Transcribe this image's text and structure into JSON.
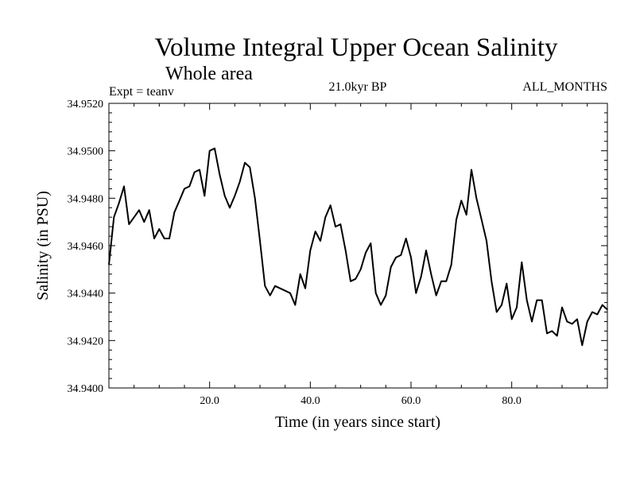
{
  "chart_data": {
    "type": "line",
    "title": "Volume Integral Upper Ocean Salinity",
    "subtitle": "Whole area",
    "experiment_label": "Expt = teanv",
    "period_label": "21.0kyr BP",
    "months_label": "ALL_MONTHS",
    "xlabel": "Time (in years since start)",
    "ylabel": "Salinity (in PSU)",
    "xlim": [
      0,
      99
    ],
    "ylim": [
      34.94,
      34.952
    ],
    "x_ticks": [
      20,
      40,
      60,
      80
    ],
    "x_tick_labels": [
      "20.0",
      "40.0",
      "60.0",
      "80.0"
    ],
    "y_ticks": [
      34.94,
      34.942,
      34.944,
      34.946,
      34.948,
      34.95,
      34.952
    ],
    "y_tick_labels": [
      "34.9400",
      "34.9420",
      "34.9440",
      "34.9460",
      "34.9480",
      "34.9500",
      "34.9520"
    ],
    "series": [
      {
        "name": "salinity",
        "x": [
          0,
          1,
          2,
          3,
          4,
          5,
          6,
          7,
          8,
          9,
          10,
          11,
          12,
          13,
          14,
          15,
          16,
          17,
          18,
          19,
          20,
          21,
          22,
          23,
          24,
          25,
          26,
          27,
          28,
          29,
          30,
          31,
          32,
          33,
          34,
          35,
          36,
          37,
          38,
          39,
          40,
          41,
          42,
          43,
          44,
          45,
          46,
          47,
          48,
          49,
          50,
          51,
          52,
          53,
          54,
          55,
          56,
          57,
          58,
          59,
          60,
          61,
          62,
          63,
          64,
          65,
          66,
          67,
          68,
          69,
          70,
          71,
          72,
          73,
          74,
          75,
          76,
          77,
          78,
          79,
          80,
          81,
          82,
          83,
          84,
          85,
          86,
          87,
          88,
          89,
          90,
          91,
          92,
          93,
          94,
          95,
          96,
          97,
          98,
          99
        ],
        "values": [
          34.9452,
          34.9472,
          34.9478,
          34.9485,
          34.9469,
          34.9472,
          34.9475,
          34.947,
          34.9475,
          34.9463,
          34.9467,
          34.9463,
          34.9463,
          34.9474,
          34.9479,
          34.9484,
          34.9485,
          34.9491,
          34.9492,
          34.9481,
          34.95,
          34.9501,
          34.949,
          34.9481,
          34.9476,
          34.9481,
          34.9487,
          34.9495,
          34.9493,
          34.948,
          34.9462,
          34.9443,
          34.9439,
          34.9443,
          34.9442,
          34.9441,
          34.944,
          34.9435,
          34.9448,
          34.9442,
          34.9458,
          34.9466,
          34.9462,
          34.9472,
          34.9477,
          34.9468,
          34.9469,
          34.9458,
          34.9445,
          34.9446,
          34.945,
          34.9457,
          34.9461,
          34.944,
          34.9435,
          34.9439,
          34.9451,
          34.9455,
          34.9456,
          34.9463,
          34.9455,
          34.944,
          34.9447,
          34.9458,
          34.9448,
          34.9439,
          34.9445,
          34.9445,
          34.9452,
          34.9471,
          34.9479,
          34.9473,
          34.9492,
          34.948,
          34.9471,
          34.9462,
          34.9445,
          34.9432,
          34.9435,
          34.9444,
          34.9429,
          34.9434,
          34.9453,
          34.9437,
          34.9428,
          34.9437,
          34.9437,
          34.9423,
          34.9424,
          34.9422,
          34.9434,
          34.9428,
          34.9427,
          34.9429,
          34.9418,
          34.9428,
          34.9432,
          34.9431,
          34.9435,
          34.9433
        ]
      }
    ]
  }
}
